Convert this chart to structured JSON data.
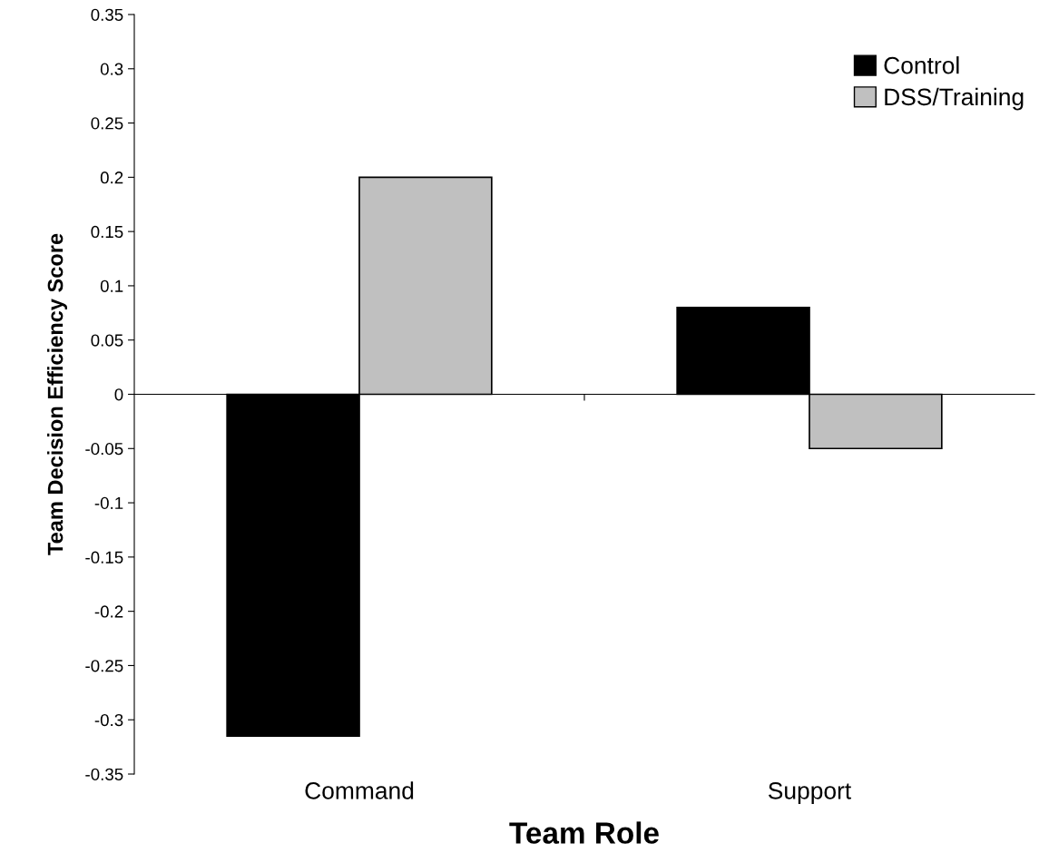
{
  "chart_data": {
    "type": "bar",
    "xlabel": "Team Role",
    "ylabel": "Team Decision Efficiency Score",
    "categories": [
      "Command",
      "Support"
    ],
    "series": [
      {
        "name": "Control",
        "color": "#000000",
        "values": [
          -0.315,
          0.08
        ]
      },
      {
        "name": "DSS/Training",
        "color": "#c0c0c0",
        "values": [
          0.2,
          -0.05
        ]
      }
    ],
    "ylim": [
      -0.35,
      0.35
    ],
    "yticks": [
      -0.35,
      -0.3,
      -0.25,
      -0.2,
      -0.15,
      -0.1,
      -0.05,
      0,
      0.05,
      0.1,
      0.15,
      0.2,
      0.25,
      0.3,
      0.35
    ],
    "legend": "top right"
  }
}
